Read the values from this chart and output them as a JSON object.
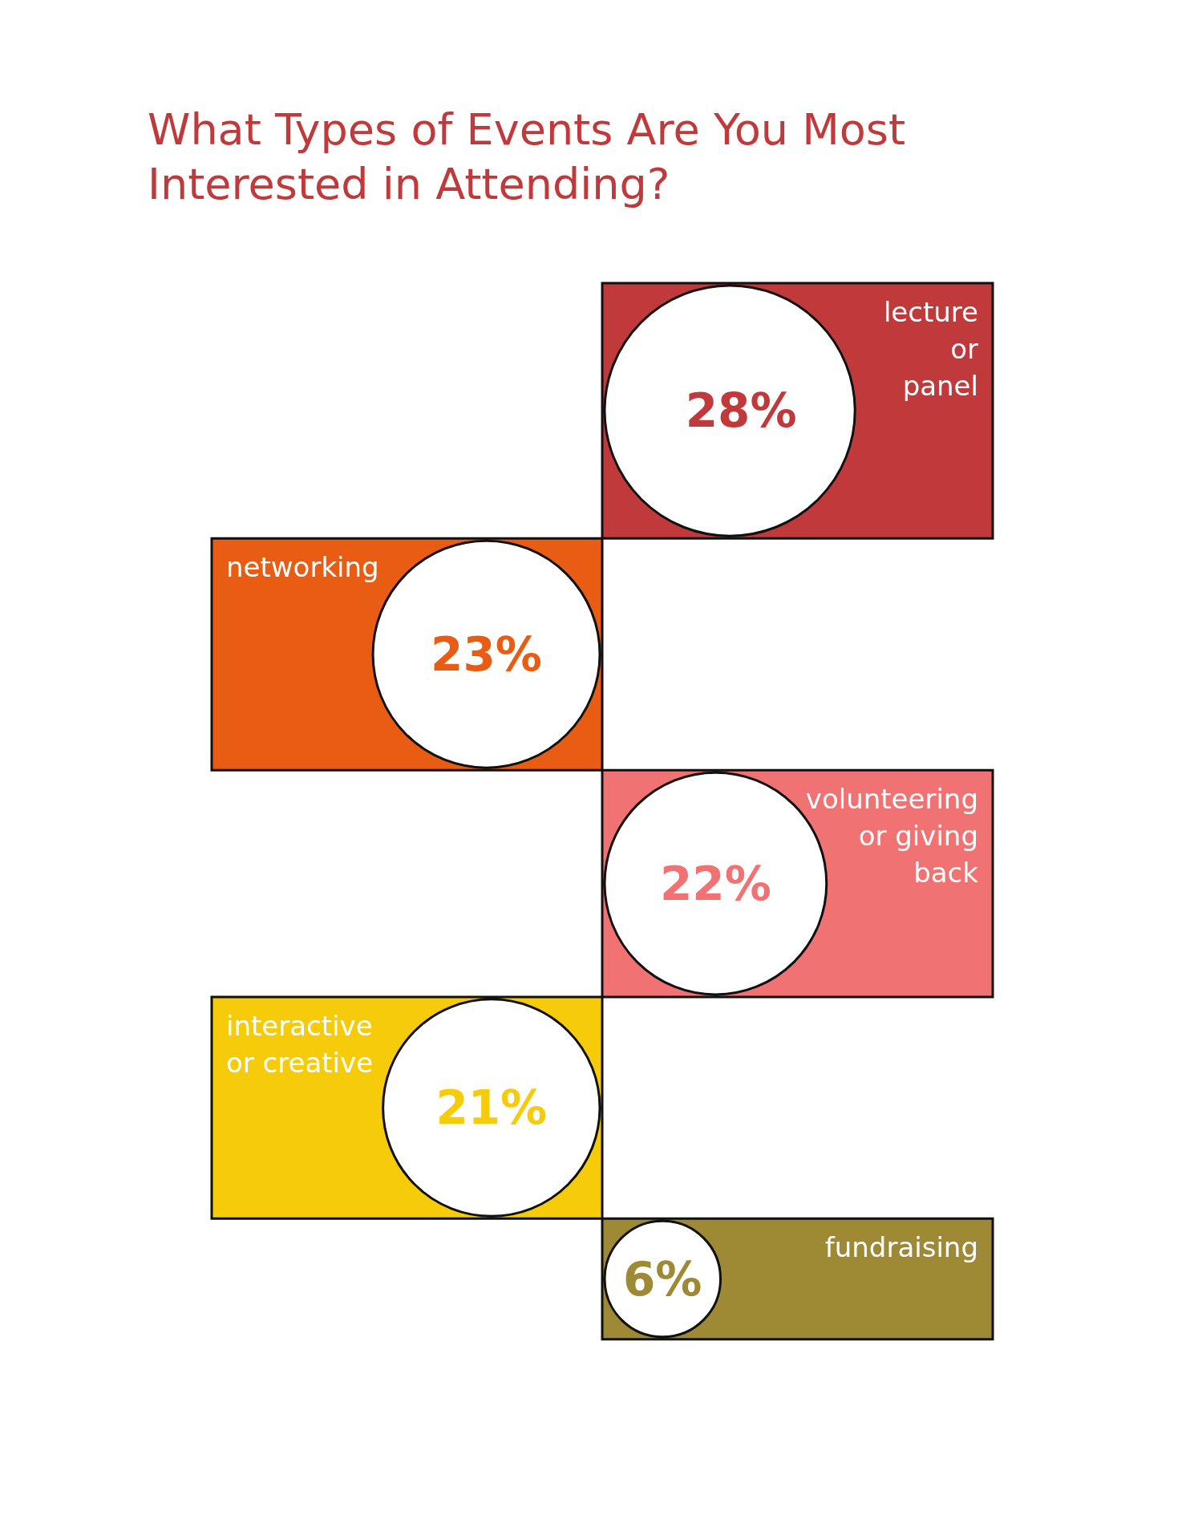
{
  "chart_data": {
    "type": "other",
    "title": "What Types of Events Are You Most\nInterested in Attending?",
    "categories": [
      "lecture\nor\npanel",
      "networking",
      "volunteering\nor giving\nback",
      "interactive\nor creative",
      "fundraising"
    ],
    "values": [
      28,
      23,
      22,
      21,
      6
    ],
    "value_labels": [
      "28%",
      "23%",
      "22%",
      "21%",
      "6%"
    ],
    "colors": [
      "#c0393b",
      "#e85c14",
      "#f17272",
      "#f6cc0a",
      "#9e8934"
    ]
  }
}
